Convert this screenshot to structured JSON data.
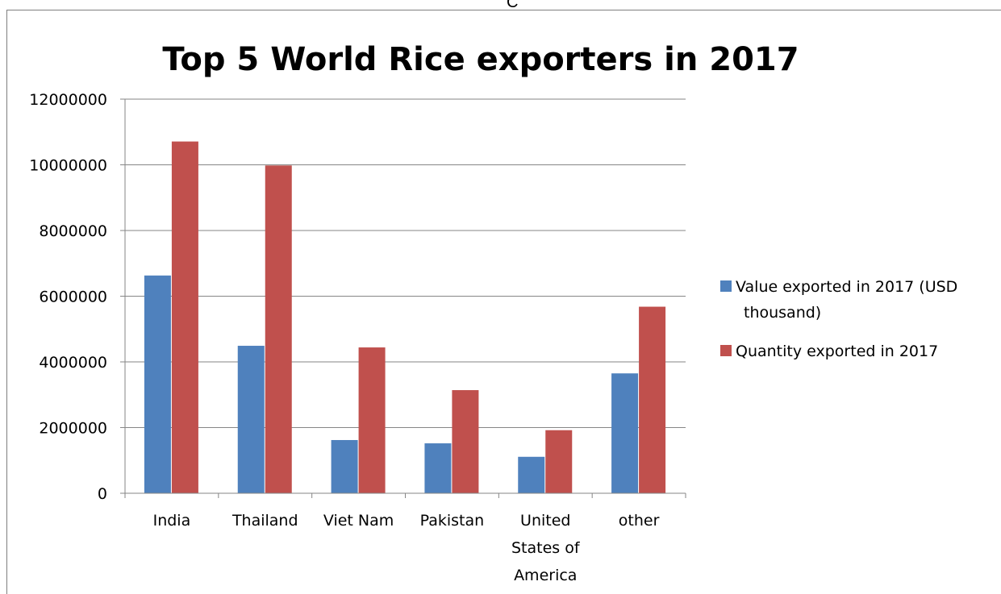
{
  "stray_text": "C",
  "chart_data": {
    "type": "bar",
    "title": "Top 5 World Rice exporters in 2017",
    "categories": [
      "India",
      "Thailand",
      "Viet Nam",
      "Pakistan",
      "United States of America",
      "other"
    ],
    "category_label_lines": [
      [
        "India"
      ],
      [
        "Thailand"
      ],
      [
        "Viet Nam"
      ],
      [
        "Pakistan"
      ],
      [
        "United",
        "States of",
        "America"
      ],
      [
        "other"
      ]
    ],
    "series": [
      {
        "name": "Value exported in 2017 (USD thousand)",
        "color": "#4f81bd",
        "values": [
          6630000,
          4490000,
          1620000,
          1520000,
          1110000,
          3650000
        ]
      },
      {
        "name": "Quantity exported in 2017",
        "color": "#c0504d",
        "values": [
          10710000,
          9980000,
          4440000,
          3140000,
          1920000,
          5680000
        ]
      }
    ],
    "legend_lines": [
      [
        "Value exported in 2017 (USD",
        "thousand)"
      ],
      [
        "Quantity exported in 2017"
      ]
    ],
    "ylim": [
      0,
      12000000
    ],
    "yticks": [
      0,
      2000000,
      4000000,
      6000000,
      8000000,
      10000000,
      12000000
    ],
    "ytick_labels": [
      "0",
      "2000000",
      "4000000",
      "6000000",
      "8000000",
      "10000000",
      "12000000"
    ],
    "grid": true,
    "legend_position": "right",
    "xlabel": "",
    "ylabel": ""
  }
}
